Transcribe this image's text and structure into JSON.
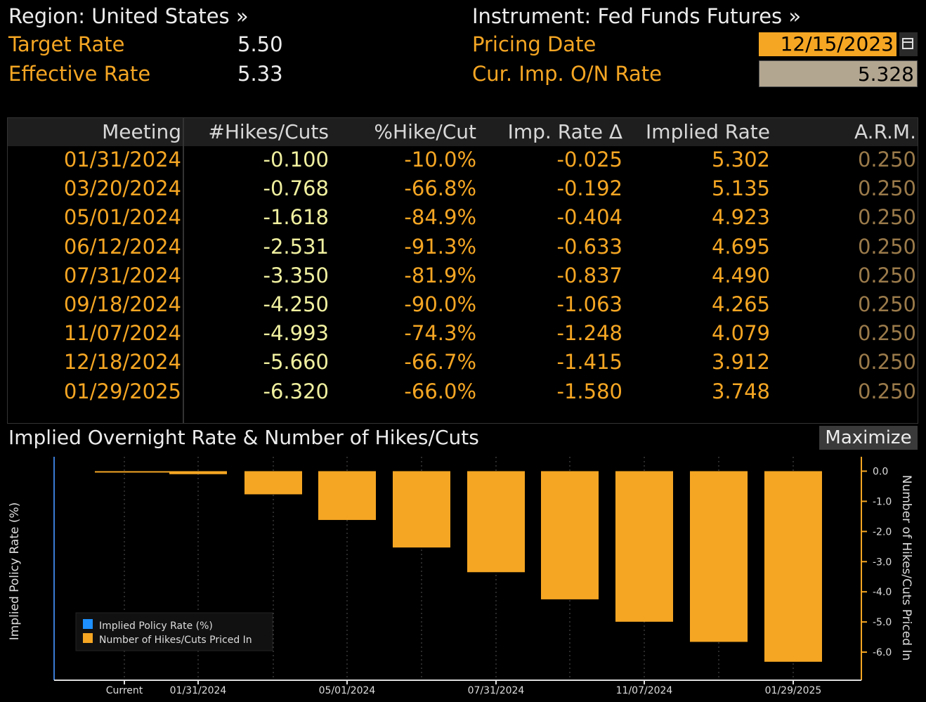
{
  "header": {
    "region_label": "Region: United States »",
    "instrument_label": "Instrument: Fed Funds Futures »",
    "target_rate_label": "Target Rate",
    "target_rate_value": "5.50",
    "effective_rate_label": "Effective Rate",
    "effective_rate_value": "5.33",
    "pricing_date_label": "Pricing Date",
    "pricing_date_value": "12/15/2023",
    "cur_imp_label": "Cur. Imp. O/N Rate",
    "cur_imp_value": "5.328"
  },
  "table": {
    "columns": [
      "Meeting",
      "#Hikes/Cuts",
      "%Hike/Cut",
      "Imp. Rate Δ",
      "Implied Rate",
      "A.R.M."
    ],
    "rows": [
      [
        "01/31/2024",
        "-0.100",
        "-10.0%",
        "-0.025",
        "5.302",
        "0.250"
      ],
      [
        "03/20/2024",
        "-0.768",
        "-66.8%",
        "-0.192",
        "5.135",
        "0.250"
      ],
      [
        "05/01/2024",
        "-1.618",
        "-84.9%",
        "-0.404",
        "4.923",
        "0.250"
      ],
      [
        "06/12/2024",
        "-2.531",
        "-91.3%",
        "-0.633",
        "4.695",
        "0.250"
      ],
      [
        "07/31/2024",
        "-3.350",
        "-81.9%",
        "-0.837",
        "4.490",
        "0.250"
      ],
      [
        "09/18/2024",
        "-4.250",
        "-90.0%",
        "-1.063",
        "4.265",
        "0.250"
      ],
      [
        "11/07/2024",
        "-4.993",
        "-74.3%",
        "-1.248",
        "4.079",
        "0.250"
      ],
      [
        "12/18/2024",
        "-5.660",
        "-66.7%",
        "-1.415",
        "3.912",
        "0.250"
      ],
      [
        "01/29/2025",
        "-6.320",
        "-66.0%",
        "-1.580",
        "3.748",
        "0.250"
      ]
    ]
  },
  "chart_panel": {
    "title": "Implied Overnight Rate & Number of Hikes/Cuts",
    "maximize_label": "Maximize"
  },
  "colors": {
    "line": "#1e90ff",
    "bar": "#f5a623",
    "date": "#f5a623",
    "num": "#f0f0a0",
    "pct": "#f5a623",
    "arm": "#9a7a4a"
  },
  "chart_data": {
    "type": "bar",
    "categories": [
      "Current",
      "01/31/2024",
      "03/20/2024",
      "05/01/2024",
      "06/12/2024",
      "07/31/2024",
      "09/18/2024",
      "11/07/2024",
      "12/18/2024",
      "01/29/2025"
    ],
    "x_tick_labels": [
      "Current",
      "01/31/2024",
      "05/01/2024",
      "07/31/2024",
      "11/07/2024",
      "01/29/2025"
    ],
    "series": [
      {
        "name": "Implied Policy Rate (%)",
        "type": "line",
        "axis": "left",
        "values": [
          5.328,
          5.302,
          5.135,
          4.923,
          4.695,
          4.49,
          4.265,
          4.079,
          3.912,
          3.748
        ]
      },
      {
        "name": "Number of Hikes/Cuts Priced In",
        "type": "bar",
        "axis": "right",
        "values": [
          0,
          -0.1,
          -0.768,
          -1.618,
          -2.531,
          -3.35,
          -4.25,
          -4.993,
          -5.66,
          -6.32
        ]
      }
    ],
    "ylabel": "Implied Policy Rate (%)",
    "y2label": "Number of Hikes/Cuts Priced In",
    "ylim": [
      3.6,
      5.4
    ],
    "y2lim": [
      -6.8,
      0.3
    ],
    "yticks": [
      "5.4",
      "5.2",
      "5.0",
      "4.8",
      "4.6",
      "4.4",
      "4.2",
      "4.0",
      "3.8",
      "3.6"
    ],
    "y2ticks": [
      "0.0",
      "-1.0",
      "-2.0",
      "-3.0",
      "-4.0",
      "-5.0",
      "-6.0"
    ],
    "grid": true,
    "legend_position": "bottom-left"
  }
}
